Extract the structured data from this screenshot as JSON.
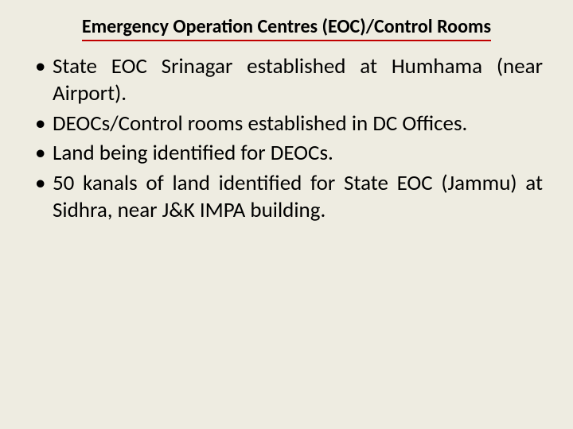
{
  "slide": {
    "title": "Emergency Operation Centres (EOC)/Control Rooms",
    "background_color": "#eeece1",
    "title_underline_color": "#c00000",
    "title_fontsize": 24,
    "body_fontsize": 27,
    "text_color": "#000000",
    "bullets": [
      "State EOC Srinagar established at Humhama (near Airport).",
      "DEOCs/Control rooms established in DC Offices.",
      "Land being identified for DEOCs.",
      "50 kanals of land identified for State EOC (Jammu) at Sidhra, near  J&K IMPA building."
    ]
  }
}
